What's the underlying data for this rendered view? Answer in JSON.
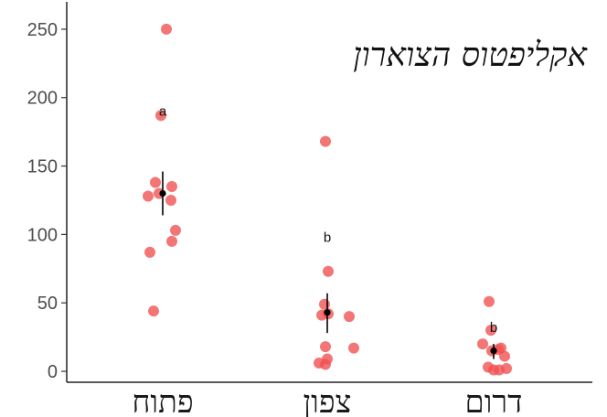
{
  "chart_data": {
    "type": "scatter",
    "title": "אקליפטוס הצוארון",
    "xlabel": "",
    "ylabel": "",
    "categories": [
      "פתוח",
      "צפון",
      "דרום"
    ],
    "ylim": [
      -8,
      270
    ],
    "yticks": [
      0,
      50,
      100,
      150,
      200,
      250
    ],
    "grid": false,
    "point_color": "#f05252",
    "mean_color": "#000000",
    "groups": [
      {
        "category": "פתוח",
        "values": [
          250,
          187,
          138,
          135,
          130,
          128,
          125,
          103,
          95,
          87,
          44
        ],
        "mean": 130,
        "se": [
          114,
          146
        ],
        "letter": "a",
        "letter_y": 190
      },
      {
        "category": "צפון",
        "values": [
          168,
          73,
          49,
          42,
          41,
          40,
          18,
          17,
          9,
          6,
          5
        ],
        "mean": 43,
        "se": [
          28,
          57
        ],
        "letter": "b",
        "letter_y": 98
      },
      {
        "category": "דרום",
        "values": [
          51,
          30,
          20,
          17,
          16,
          15,
          11,
          3,
          2,
          1,
          1
        ],
        "mean": 15,
        "se": [
          9,
          20
        ],
        "letter": "b",
        "letter_y": 32
      }
    ]
  }
}
